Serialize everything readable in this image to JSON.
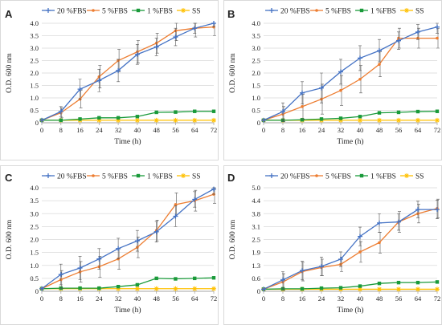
{
  "series_styles": [
    {
      "name": "20 %FBS",
      "color": "#4472c4",
      "marker": "cross"
    },
    {
      "name": "5 %FBS",
      "color": "#ed7d31",
      "marker": "dot"
    },
    {
      "name": "1 %FBS",
      "color": "#1a9a3a",
      "marker": "square"
    },
    {
      "name": "SS",
      "color": "#ffc000",
      "marker": "star"
    }
  ],
  "chart_data": [
    {
      "type": "line",
      "panel_label": "A",
      "x": [
        0,
        8,
        16,
        24,
        32,
        40,
        48,
        56,
        64,
        72
      ],
      "xticks": [
        "0",
        "8",
        "16",
        "24",
        "32",
        "40",
        "48",
        "56",
        "64",
        "72"
      ],
      "xlabel": "Time (h)",
      "ylabel": "O.D. 600 nm",
      "yticks": [
        "0",
        "0.5",
        "1.0",
        "1.5",
        "2.0",
        "2.5",
        "3.0",
        "3.5",
        "4.0"
      ],
      "ylim": [
        0,
        4.0
      ],
      "grid": true,
      "legend_placement": "top",
      "series": [
        {
          "name": "20 %FBS",
          "values": [
            0.1,
            0.45,
            1.35,
            1.7,
            2.1,
            2.75,
            3.05,
            3.45,
            3.8,
            4.0
          ],
          "errors": [
            0.0,
            0.2,
            0.4,
            0.45,
            0.45,
            0.4,
            0.35,
            0.35,
            0.2,
            0.15
          ]
        },
        {
          "name": "5 %FBS",
          "values": [
            0.1,
            0.4,
            0.95,
            1.85,
            2.5,
            2.85,
            3.2,
            3.7,
            3.8,
            3.85
          ],
          "errors": [
            0.0,
            0.2,
            0.35,
            0.45,
            0.45,
            0.45,
            0.4,
            0.4,
            0.35,
            0.35
          ]
        },
        {
          "name": "1 %FBS",
          "values": [
            0.1,
            0.1,
            0.15,
            0.2,
            0.2,
            0.25,
            0.42,
            0.43,
            0.46,
            0.46
          ],
          "errors": [
            0.0,
            0.02,
            0.02,
            0.03,
            0.03,
            0.03,
            0.04,
            0.04,
            0.04,
            0.04
          ]
        },
        {
          "name": "SS",
          "values": [
            0.1,
            0.1,
            0.1,
            0.1,
            0.1,
            0.1,
            0.1,
            0.1,
            0.1,
            0.1
          ],
          "errors": [
            0.0,
            0.0,
            0.0,
            0.0,
            0.0,
            0.0,
            0.0,
            0.0,
            0.0,
            0.0
          ]
        }
      ]
    },
    {
      "type": "line",
      "panel_label": "B",
      "x": [
        0,
        8,
        16,
        24,
        32,
        40,
        48,
        56,
        64,
        72
      ],
      "xticks": [
        "0",
        "8",
        "16",
        "24",
        "32",
        "40",
        "48",
        "56",
        "64",
        "72"
      ],
      "xlabel": "Time (h)",
      "ylabel": "O.D. 600 nm",
      "yticks": [
        "0",
        "0.5",
        "1.0",
        "1.5",
        "2.0",
        "2.5",
        "3.0",
        "3.5",
        "4.0"
      ],
      "ylim": [
        0,
        4.0
      ],
      "grid": true,
      "legend_placement": "top",
      "series": [
        {
          "name": "20 %FBS",
          "values": [
            0.1,
            0.45,
            1.2,
            1.4,
            2.05,
            2.6,
            2.9,
            3.3,
            3.65,
            3.85
          ],
          "errors": [
            0.0,
            0.35,
            0.45,
            0.6,
            0.5,
            0.5,
            0.45,
            0.35,
            0.3,
            0.25
          ]
        },
        {
          "name": "5 %FBS",
          "values": [
            0.1,
            0.35,
            0.65,
            0.95,
            1.3,
            1.75,
            2.35,
            3.4,
            3.4,
            3.4
          ],
          "errors": [
            0.0,
            0.3,
            0.5,
            0.6,
            0.6,
            0.55,
            0.5,
            0.4,
            0.4,
            0.4
          ]
        },
        {
          "name": "1 %FBS",
          "values": [
            0.1,
            0.1,
            0.12,
            0.15,
            0.18,
            0.25,
            0.4,
            0.42,
            0.45,
            0.46
          ],
          "errors": [
            0.0,
            0.02,
            0.02,
            0.03,
            0.03,
            0.04,
            0.05,
            0.05,
            0.05,
            0.05
          ]
        },
        {
          "name": "SS",
          "values": [
            0.1,
            0.1,
            0.1,
            0.1,
            0.1,
            0.1,
            0.1,
            0.1,
            0.1,
            0.1
          ],
          "errors": [
            0.0,
            0.0,
            0.0,
            0.0,
            0.0,
            0.0,
            0.0,
            0.0,
            0.0,
            0.0
          ]
        }
      ]
    },
    {
      "type": "line",
      "panel_label": "C",
      "x": [
        0,
        8,
        16,
        24,
        32,
        40,
        48,
        56,
        64,
        72
      ],
      "xticks": [
        "0",
        "8",
        "16",
        "24",
        "32",
        "40",
        "48",
        "56",
        "64",
        "72"
      ],
      "xlabel": "Time (h)",
      "ylabel": "O.D. 600 nm",
      "yticks": [
        "0",
        "0.5",
        "1.0",
        "1.5",
        "2.0",
        "2.5",
        "3.0",
        "3.5",
        "4.0"
      ],
      "ylim": [
        0,
        4.0
      ],
      "grid": true,
      "legend_placement": "top",
      "series": [
        {
          "name": "20 %FBS",
          "values": [
            0.1,
            0.65,
            0.9,
            1.25,
            1.65,
            1.95,
            2.3,
            2.9,
            3.55,
            3.95
          ],
          "errors": [
            0.0,
            0.4,
            0.45,
            0.4,
            0.4,
            0.4,
            0.4,
            0.4,
            0.3,
            0.2
          ]
        },
        {
          "name": "5 %FBS",
          "values": [
            0.1,
            0.45,
            0.75,
            0.95,
            1.25,
            1.7,
            2.35,
            3.35,
            3.5,
            3.75
          ],
          "errors": [
            0.0,
            0.35,
            0.4,
            0.4,
            0.4,
            0.4,
            0.4,
            0.45,
            0.4,
            0.35
          ]
        },
        {
          "name": "1 %FBS",
          "values": [
            0.1,
            0.12,
            0.12,
            0.12,
            0.18,
            0.25,
            0.5,
            0.48,
            0.5,
            0.52
          ],
          "errors": [
            0.0,
            0.02,
            0.02,
            0.02,
            0.04,
            0.04,
            0.05,
            0.05,
            0.05,
            0.05
          ]
        },
        {
          "name": "SS",
          "values": [
            0.1,
            0.1,
            0.1,
            0.1,
            0.1,
            0.1,
            0.1,
            0.1,
            0.1,
            0.1
          ],
          "errors": [
            0.0,
            0.0,
            0.0,
            0.0,
            0.0,
            0.0,
            0.0,
            0.0,
            0.0,
            0.0
          ]
        }
      ]
    },
    {
      "type": "line",
      "panel_label": "D",
      "x": [
        0,
        8,
        16,
        24,
        32,
        40,
        48,
        56,
        64,
        72
      ],
      "xticks": [
        "0",
        "8",
        "16",
        "24",
        "32",
        "40",
        "48",
        "56",
        "64",
        "72"
      ],
      "xlabel": "Time (h)",
      "ylabel": "O.D. 600 nm",
      "yticks": [
        "0",
        "0.6",
        "1.3",
        "1.9",
        "2.5",
        "3.1",
        "3.8",
        "4.4",
        "5.0"
      ],
      "ylim": [
        0,
        5.0
      ],
      "grid": true,
      "legend_placement": "top",
      "series": [
        {
          "name": "20 %FBS",
          "values": [
            0.1,
            0.55,
            1.0,
            1.2,
            1.55,
            2.65,
            3.3,
            3.35,
            3.95,
            3.95
          ],
          "errors": [
            0.0,
            0.4,
            0.45,
            0.45,
            0.35,
            0.45,
            0.45,
            0.4,
            0.4,
            0.45
          ]
        },
        {
          "name": "5 %FBS",
          "values": [
            0.1,
            0.45,
            0.95,
            1.15,
            1.3,
            1.9,
            2.35,
            3.35,
            3.75,
            4.0
          ],
          "errors": [
            0.0,
            0.4,
            0.45,
            0.4,
            0.35,
            0.5,
            0.5,
            0.5,
            0.45,
            0.45
          ]
        },
        {
          "name": "1 %FBS",
          "values": [
            0.1,
            0.12,
            0.12,
            0.15,
            0.17,
            0.25,
            0.38,
            0.42,
            0.42,
            0.45
          ],
          "errors": [
            0.0,
            0.02,
            0.02,
            0.03,
            0.03,
            0.04,
            0.05,
            0.05,
            0.05,
            0.05
          ]
        },
        {
          "name": "SS",
          "values": [
            0.1,
            0.1,
            0.1,
            0.1,
            0.1,
            0.1,
            0.1,
            0.1,
            0.1,
            0.1
          ],
          "errors": [
            0.0,
            0.0,
            0.0,
            0.0,
            0.0,
            0.0,
            0.0,
            0.0,
            0.0,
            0.0
          ]
        }
      ]
    }
  ]
}
